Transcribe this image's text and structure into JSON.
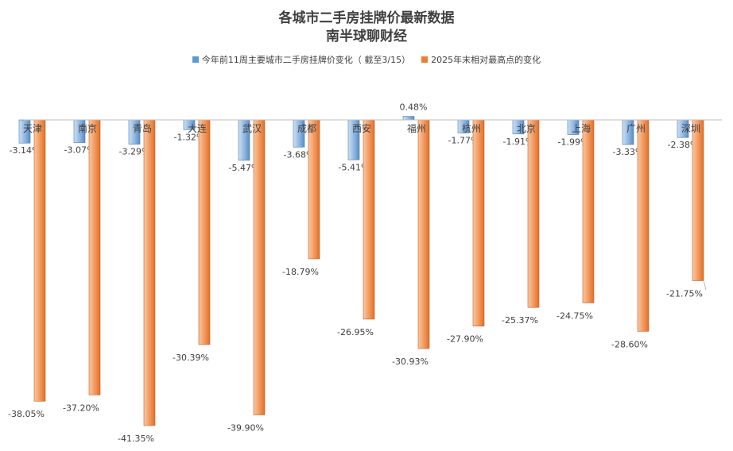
{
  "title": "各城市二手房挂牌价最新数据",
  "subtitle": "南半球聊财经",
  "chart_data": {
    "type": "bar",
    "categories": [
      "天津",
      "南京",
      "青岛",
      "大连",
      "武汉",
      "成都",
      "西安",
      "福州",
      "杭州",
      "北京",
      "上海",
      "广州",
      "深圳"
    ],
    "series": [
      {
        "name": "今年前11周主要城市二手房挂牌价变化（ 截至3/15）",
        "color": "#5b9bd5",
        "values": [
          -3.14,
          -3.07,
          -3.29,
          -1.32,
          -5.47,
          -3.68,
          -5.41,
          0.48,
          -1.77,
          -1.91,
          -1.99,
          -3.33,
          -2.38
        ]
      },
      {
        "name": "2025年末相对最高点的变化",
        "color": "#ed7d31",
        "values": [
          -38.05,
          -37.2,
          -41.35,
          -30.39,
          -39.9,
          -18.79,
          -26.95,
          -30.93,
          -27.9,
          -25.37,
          -24.75,
          -28.6,
          -21.75
        ]
      }
    ],
    "value_format": "percent_2dp",
    "legend": "top",
    "grid": false
  }
}
